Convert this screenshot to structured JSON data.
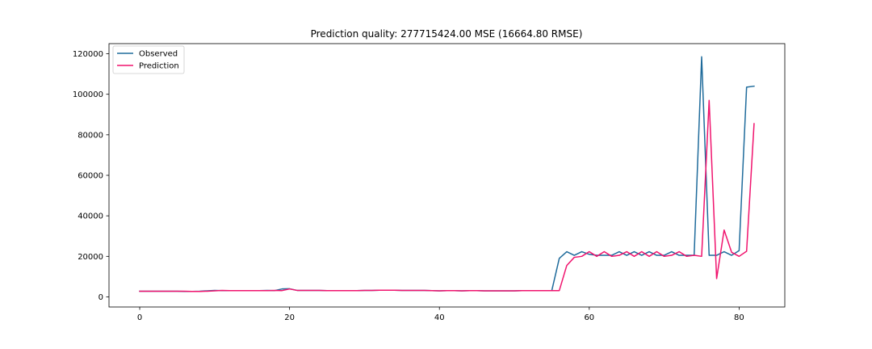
{
  "chart_data": {
    "type": "line",
    "title": "Prediction quality: 277715424.00 MSE (16664.80 RMSE)",
    "xlabel": "",
    "ylabel": "",
    "xlim": [
      -4.1,
      86.1
    ],
    "ylim": [
      -5000,
      125000
    ],
    "xticks": [
      0,
      20,
      40,
      60,
      80
    ],
    "xtick_labels": [
      "0",
      "20",
      "40",
      "60",
      "80"
    ],
    "yticks": [
      0,
      20000,
      40000,
      60000,
      80000,
      100000,
      120000
    ],
    "ytick_labels": [
      "0",
      "20000",
      "40000",
      "60000",
      "80000",
      "100000",
      "120000"
    ],
    "grid": false,
    "legend_position": "top-left",
    "series": [
      {
        "name": "Observed",
        "color": "#1f6b9b",
        "x": [
          0,
          1,
          2,
          3,
          4,
          5,
          6,
          7,
          8,
          9,
          10,
          11,
          12,
          13,
          14,
          15,
          16,
          17,
          18,
          19,
          20,
          21,
          22,
          23,
          24,
          25,
          26,
          27,
          28,
          29,
          30,
          31,
          32,
          33,
          34,
          35,
          36,
          37,
          38,
          39,
          40,
          41,
          42,
          43,
          44,
          45,
          46,
          47,
          48,
          49,
          50,
          51,
          52,
          53,
          54,
          55,
          56,
          57,
          58,
          59,
          60,
          61,
          62,
          63,
          64,
          65,
          66,
          67,
          68,
          69,
          70,
          71,
          72,
          73,
          74,
          75,
          76,
          77,
          78,
          79,
          80,
          81,
          82
        ],
        "values": [
          2800,
          2800,
          2800,
          2800,
          2800,
          2800,
          2700,
          2700,
          2800,
          3000,
          3200,
          3100,
          3100,
          3100,
          3100,
          3100,
          3100,
          3200,
          3100,
          3900,
          4000,
          3200,
          3200,
          3200,
          3200,
          3100,
          3100,
          3100,
          3100,
          3100,
          3200,
          3200,
          3300,
          3300,
          3300,
          3200,
          3200,
          3200,
          3200,
          3100,
          3000,
          3100,
          3100,
          3000,
          3100,
          3100,
          3000,
          3000,
          3000,
          3000,
          3000,
          3100,
          3100,
          3100,
          3100,
          3100,
          19000,
          22300,
          20500,
          22300,
          21000,
          20500,
          20500,
          20500,
          22300,
          20500,
          22300,
          20500,
          22300,
          20500,
          20500,
          22300,
          20500,
          20500,
          20500,
          118500,
          20500,
          20500,
          22300,
          20500,
          22800,
          103500,
          104000
        ]
      },
      {
        "name": "Prediction",
        "color": "#f0146e",
        "x": [
          0,
          1,
          2,
          3,
          4,
          5,
          6,
          7,
          8,
          9,
          10,
          11,
          12,
          13,
          14,
          15,
          16,
          17,
          18,
          19,
          20,
          21,
          22,
          23,
          24,
          25,
          26,
          27,
          28,
          29,
          30,
          31,
          32,
          33,
          34,
          35,
          36,
          37,
          38,
          39,
          40,
          41,
          42,
          43,
          44,
          45,
          46,
          47,
          48,
          49,
          50,
          51,
          52,
          53,
          54,
          55,
          56,
          57,
          58,
          59,
          60,
          61,
          62,
          63,
          64,
          65,
          66,
          67,
          68,
          69,
          70,
          71,
          72,
          73,
          74,
          75,
          76,
          77,
          78,
          79,
          80,
          81,
          82
        ],
        "values": [
          2800,
          2800,
          2800,
          2800,
          2800,
          2800,
          2800,
          2700,
          2700,
          2800,
          3000,
          3200,
          3100,
          3100,
          3100,
          3100,
          3100,
          3100,
          3200,
          3100,
          3900,
          3200,
          3200,
          3200,
          3200,
          3100,
          3100,
          3100,
          3100,
          3100,
          3200,
          3200,
          3300,
          3300,
          3300,
          3200,
          3200,
          3200,
          3200,
          3100,
          3000,
          3100,
          3100,
          3000,
          3100,
          3100,
          3000,
          3000,
          3000,
          3000,
          3000,
          3100,
          3100,
          3100,
          3100,
          3100,
          3100,
          15500,
          19500,
          20000,
          22300,
          20000,
          22300,
          20000,
          20500,
          22300,
          20000,
          22300,
          20000,
          22300,
          20000,
          20500,
          22300,
          20000,
          20500,
          20000,
          97000,
          9000,
          33000,
          22000,
          20000,
          22500,
          85500
        ]
      }
    ]
  }
}
